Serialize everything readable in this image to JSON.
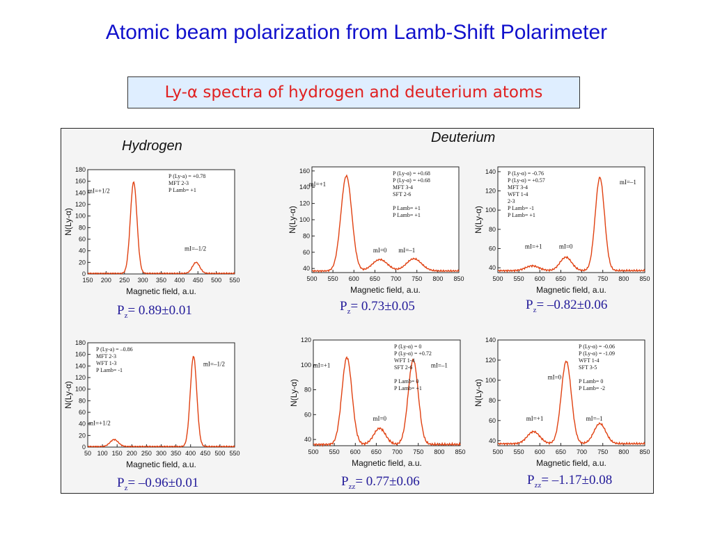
{
  "title": "Atomic beam polarization from Lamb-Shift Polarimeter",
  "subtitle": "Ly-α spectra of hydrogen and deuterium atoms",
  "sections": {
    "hydrogen": "Hydrogen",
    "deuterium": "Deuterium"
  },
  "colors": {
    "title": "#1111cc",
    "subtitle": "#e02020",
    "curve": "#e04010",
    "result": "#221a99"
  },
  "chart_data": [
    {
      "type": "line",
      "ylabel": "N(Ly-α)",
      "xlabel": "Magnetic field, a.u.",
      "xlim": [
        150,
        550
      ],
      "ylim": [
        0,
        180
      ],
      "xticks": [
        150,
        200,
        250,
        300,
        350,
        400,
        450,
        500,
        550
      ],
      "yticks": [
        0,
        20,
        40,
        60,
        80,
        100,
        120,
        140,
        160,
        180
      ],
      "baseline": 1,
      "peaks": [
        {
          "x": 275,
          "height": 158,
          "width": 9
        },
        {
          "x": 445,
          "height": 19,
          "width": 10
        }
      ],
      "peak_labels": [
        {
          "x": 180,
          "y": 140,
          "text": "mI=+1/2"
        },
        {
          "x": 443,
          "y": 40,
          "text": "mI=–1/2"
        }
      ],
      "info": [
        "P (Ly-a) = +0.78",
        "MFT 2-3",
        "P Lamb= +1"
      ],
      "result": {
        "symbol": "P",
        "sub": "z",
        "value": "= 0.89±0.01"
      }
    },
    {
      "type": "line",
      "ylabel": "N(Ly-α)",
      "xlabel": "Magnetic field, a.u.",
      "xlim": [
        500,
        850
      ],
      "ylim": [
        35,
        165
      ],
      "xticks": [
        500,
        550,
        600,
        650,
        700,
        750,
        800,
        850
      ],
      "yticks": [
        40,
        60,
        80,
        100,
        120,
        140,
        160
      ],
      "baseline": 37,
      "peaks": [
        {
          "x": 582,
          "height": 117,
          "width": 13
        },
        {
          "x": 662,
          "height": 14,
          "width": 18
        },
        {
          "x": 743,
          "height": 15,
          "width": 18
        }
      ],
      "peak_labels": [
        {
          "x": 513,
          "y": 141,
          "text": "mI=+1"
        },
        {
          "x": 662,
          "y": 60,
          "text": "mI=0"
        },
        {
          "x": 726,
          "y": 60,
          "text": "mI=–1"
        }
      ],
      "info": [
        "P (Ly-α) = +0.68",
        "P (Ly-α) = +0.68",
        "MFT 3-4",
        "SFT 2-6",
        "",
        "P Lamb= +1",
        "P Lamb= +1"
      ],
      "result": {
        "symbol": "P",
        "sub": "z",
        "value": "= 0.73±0.05"
      }
    },
    {
      "type": "line",
      "ylabel": "N(Ly-α)",
      "xlabel": "Magnetic field, a.u.",
      "xlim": [
        500,
        850
      ],
      "ylim": [
        35,
        145
      ],
      "xticks": [
        500,
        550,
        600,
        650,
        700,
        750,
        800,
        850
      ],
      "yticks": [
        40,
        60,
        80,
        100,
        120,
        140
      ],
      "baseline": 37,
      "peaks": [
        {
          "x": 582,
          "height": 5,
          "width": 16
        },
        {
          "x": 662,
          "height": 14,
          "width": 14
        },
        {
          "x": 743,
          "height": 97,
          "width": 11
        }
      ],
      "peak_labels": [
        {
          "x": 585,
          "y": 60,
          "text": "mI=+1"
        },
        {
          "x": 662,
          "y": 60,
          "text": "mI=0"
        },
        {
          "x": 810,
          "y": 127,
          "text": "mI=–1"
        }
      ],
      "info": [
        "P (Ly-α) = -0.76",
        "P (Ly-α) = +0.57",
        "MFT 3-4",
        "WFT 1-4",
        "2-3",
        "P Lamb= -1",
        "P Lamb= +1"
      ],
      "result": {
        "symbol": "P",
        "sub": "z",
        "value": "= –0.82±0.06"
      }
    },
    {
      "type": "line",
      "ylabel": "N(Ly-α)",
      "xlabel": "Magnetic field, a.u.",
      "xlim": [
        50,
        550
      ],
      "ylim": [
        0,
        180
      ],
      "xticks": [
        50,
        100,
        150,
        200,
        250,
        300,
        350,
        400,
        450,
        500,
        550
      ],
      "yticks": [
        0,
        20,
        40,
        60,
        80,
        100,
        120,
        140,
        160,
        180
      ],
      "baseline": 1,
      "peaks": [
        {
          "x": 140,
          "height": 12,
          "width": 14
        },
        {
          "x": 410,
          "height": 156,
          "width": 11
        }
      ],
      "peak_labels": [
        {
          "x": 90,
          "y": 38,
          "text": "mI=+1/2"
        },
        {
          "x": 480,
          "y": 140,
          "text": "mI=–1/2"
        }
      ],
      "info": [
        "P (Ly-a) = –0.86",
        "MFT 2-3",
        "WFT 1-3",
        "P Lamb= -1"
      ],
      "result": {
        "symbol": "P",
        "sub": "z",
        "value": "= –0.96±0.01"
      }
    },
    {
      "type": "line",
      "ylabel": "N(Ly-α)",
      "xlabel": "Magnetic field, a.u.",
      "xlim": [
        500,
        850
      ],
      "ylim": [
        35,
        120
      ],
      "xticks": [
        500,
        550,
        600,
        650,
        700,
        750,
        800,
        850
      ],
      "yticks": [
        40,
        60,
        80,
        100,
        120
      ],
      "baseline": 36,
      "peaks": [
        {
          "x": 580,
          "height": 70,
          "width": 12
        },
        {
          "x": 658,
          "height": 13,
          "width": 14
        },
        {
          "x": 738,
          "height": 68,
          "width": 12
        }
      ],
      "peak_labels": [
        {
          "x": 520,
          "y": 98,
          "text": "mI=+1"
        },
        {
          "x": 658,
          "y": 55,
          "text": "mI=0"
        },
        {
          "x": 800,
          "y": 98,
          "text": "mI=–1"
        }
      ],
      "info": [
        "P (Ly-α) = 0",
        "P (Ly-α) = +0.72",
        "WFT 1-4",
        "SFT 2-6",
        "",
        "P Lamb= 0",
        "P Lamb= +1"
      ],
      "result": {
        "symbol": "P",
        "sub": "zz",
        "value": "= 0.77±0.06"
      }
    },
    {
      "type": "line",
      "ylabel": "N(Ly-α)",
      "xlabel": "Magnetic field, a.u.",
      "xlim": [
        500,
        850
      ],
      "ylim": [
        35,
        140
      ],
      "xticks": [
        500,
        550,
        600,
        650,
        700,
        750,
        800,
        850
      ],
      "yticks": [
        40,
        60,
        80,
        100,
        120,
        140
      ],
      "baseline": 37,
      "peaks": [
        {
          "x": 585,
          "height": 12,
          "width": 15
        },
        {
          "x": 663,
          "height": 82,
          "width": 12
        },
        {
          "x": 743,
          "height": 20,
          "width": 14
        }
      ],
      "peak_labels": [
        {
          "x": 588,
          "y": 60,
          "text": "mI=+1"
        },
        {
          "x": 635,
          "y": 101,
          "text": "mI=0"
        },
        {
          "x": 730,
          "y": 60,
          "text": "mI=–1"
        }
      ],
      "info": [
        "P (Ly-α) = -0.06",
        "P (Ly-α) = -1.09",
        "WFT 1-4",
        "SFT 3-5",
        "",
        "P Lamb= 0",
        "P Lamb= -2"
      ],
      "result": {
        "symbol": "P",
        "sub": "zz",
        "value": "= –1.17±0.08"
      }
    }
  ]
}
